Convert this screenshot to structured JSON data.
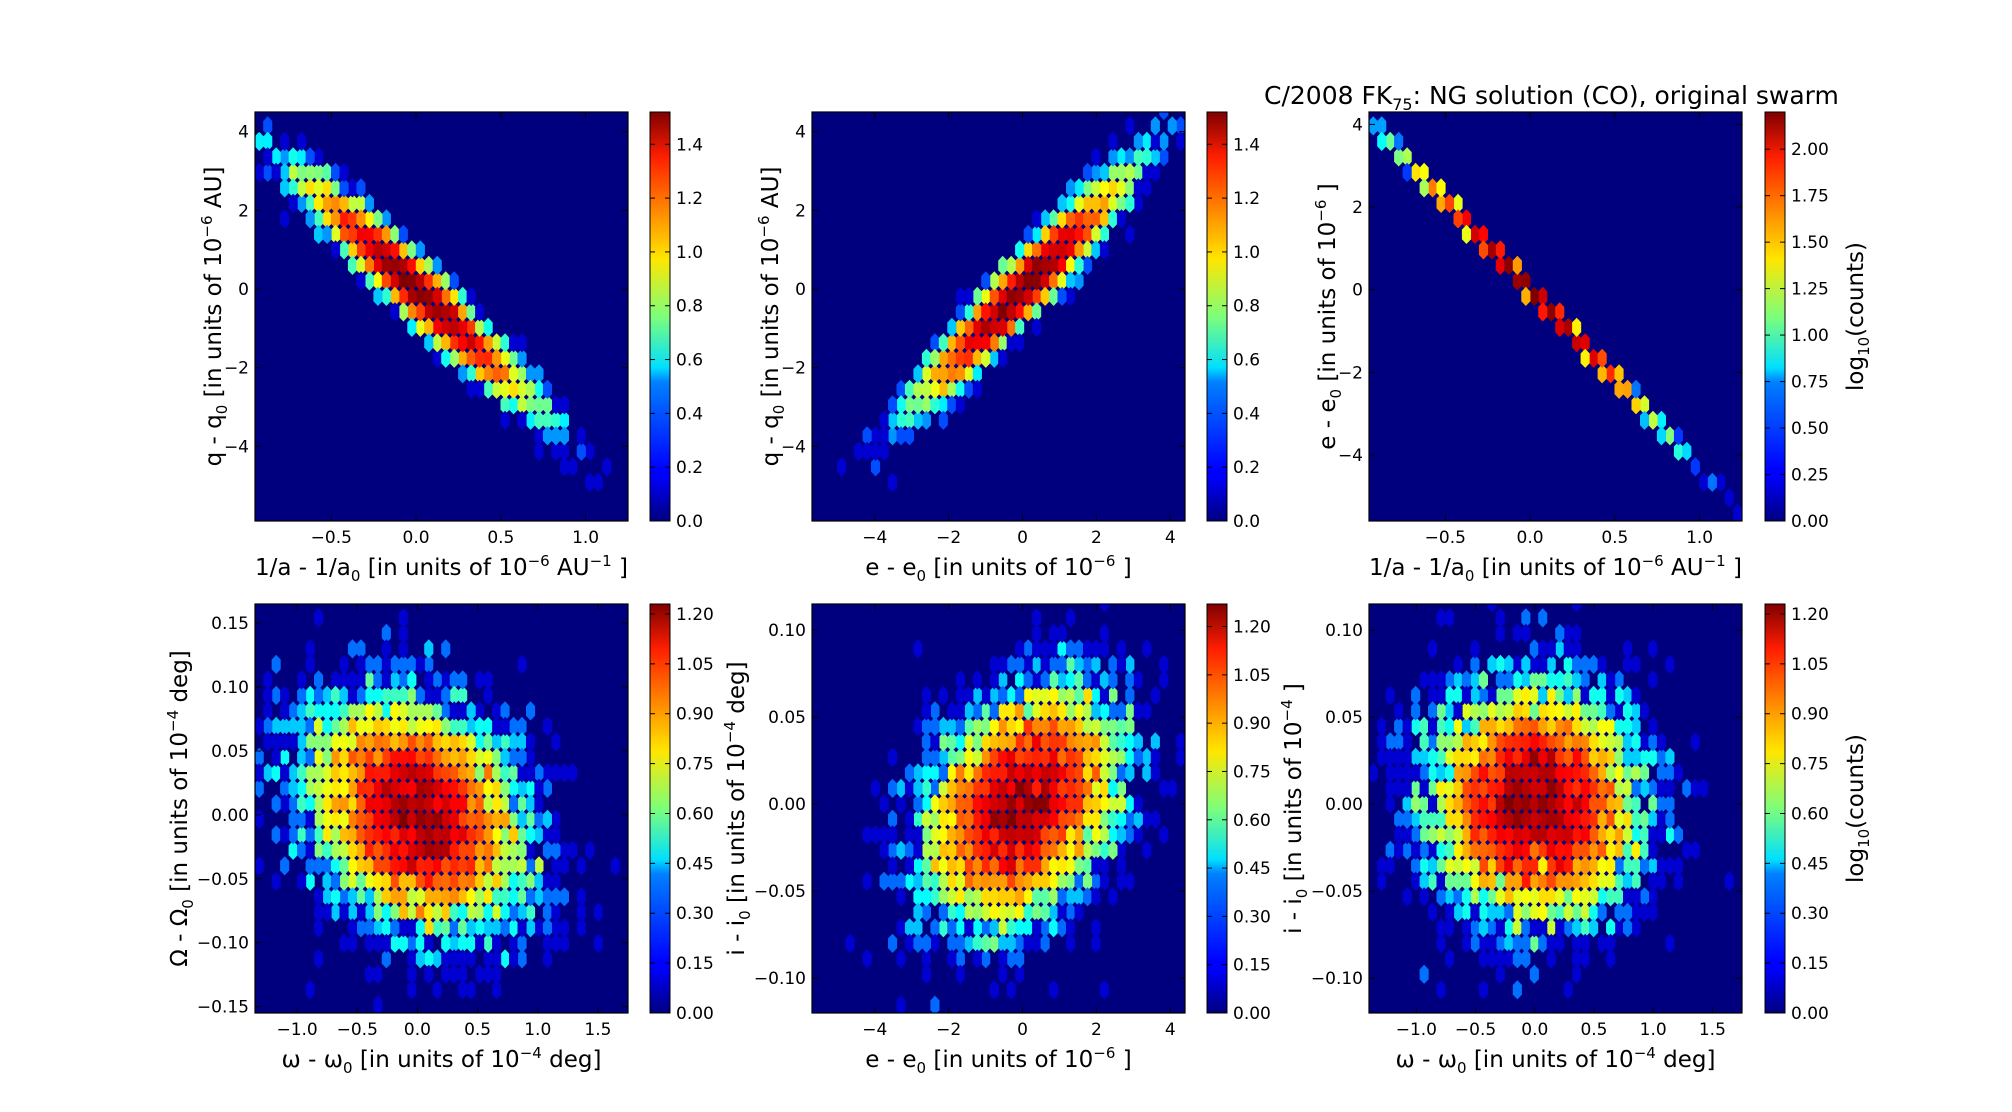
{
  "figure_title": "C/2008 FK75:  NG solution (CO), original swarm",
  "chart_data": [
    {
      "type": "heatmap",
      "id": "p1",
      "xlabel": "1/a - 1/a0 [in units of 10−6 AU−1 ]",
      "ylabel": "q - q0 [in units of 10−6 AU]",
      "xlim": [
        -0.95,
        1.25
      ],
      "ylim": [
        -5.9,
        4.5
      ],
      "xticks": [
        -0.5,
        0.0,
        0.5,
        1.0
      ],
      "xtick_labels": [
        "−0.5",
        "0.0",
        "0.5",
        "1.0"
      ],
      "yticks": [
        -4,
        -2,
        0,
        2,
        4
      ],
      "ytick_labels": [
        "−4",
        "−2",
        "0",
        "2",
        "4"
      ],
      "distribution": {
        "x_mean": 0.0,
        "x_sd": 0.3,
        "y_slope": -4.1,
        "y_scatter": 0.35
      },
      "colorbar": {
        "min": 0.0,
        "max": 1.52,
        "ticks": [
          "0.0",
          "0.2",
          "0.4",
          "0.6",
          "0.8",
          "1.0",
          "1.2",
          "1.4"
        ],
        "tick_values": [
          0.0,
          0.2,
          0.4,
          0.6,
          0.8,
          1.0,
          1.2,
          1.4
        ],
        "label": ""
      }
    },
    {
      "type": "heatmap",
      "id": "p2",
      "xlabel": "e - e0 [in units of 10−6 ]",
      "ylabel": "q - q0 [in units of 10−6 AU]",
      "xlim": [
        -5.7,
        4.4
      ],
      "ylim": [
        -5.9,
        4.5
      ],
      "xticks": [
        -4,
        -2,
        0,
        2,
        4
      ],
      "xtick_labels": [
        "−4",
        "−2",
        "0",
        "2",
        "4"
      ],
      "yticks": [
        -4,
        -2,
        0,
        2,
        4
      ],
      "ytick_labels": [
        "−4",
        "−2",
        "0",
        "2",
        "4"
      ],
      "distribution": {
        "x_mean": 0.0,
        "x_sd": 1.25,
        "y_slope": 0.98,
        "y_scatter": 0.38
      },
      "colorbar": {
        "min": 0.0,
        "max": 1.52,
        "ticks": [
          "0.0",
          "0.2",
          "0.4",
          "0.6",
          "0.8",
          "1.0",
          "1.2",
          "1.4"
        ],
        "tick_values": [
          0.0,
          0.2,
          0.4,
          0.6,
          0.8,
          1.0,
          1.2,
          1.4
        ],
        "label": ""
      }
    },
    {
      "type": "heatmap",
      "id": "p3",
      "xlabel": "1/a - 1/a0 [in units of 10−6 AU−1 ]",
      "ylabel": "e - e0 [in units of 10−6 ]",
      "xlim": [
        -0.95,
        1.25
      ],
      "ylim": [
        -5.6,
        4.3
      ],
      "xticks": [
        -0.5,
        0.0,
        0.5,
        1.0
      ],
      "xtick_labels": [
        "−0.5",
        "0.0",
        "0.5",
        "1.0"
      ],
      "yticks": [
        -4,
        -2,
        0,
        2,
        4
      ],
      "ytick_labels": [
        "−4",
        "−2",
        "0",
        "2",
        "4"
      ],
      "distribution": {
        "x_mean": 0.0,
        "x_sd": 0.3,
        "y_slope": -4.3,
        "y_scatter": 0.0,
        "line": true
      },
      "colorbar": {
        "min": 0.0,
        "max": 2.2,
        "ticks": [
          "0.00",
          "0.25",
          "0.50",
          "0.75",
          "1.00",
          "1.25",
          "1.50",
          "1.75",
          "2.00"
        ],
        "tick_values": [
          0.0,
          0.25,
          0.5,
          0.75,
          1.0,
          1.25,
          1.5,
          1.75,
          2.0
        ],
        "label": "log10(counts)"
      }
    },
    {
      "type": "heatmap",
      "id": "p4",
      "xlabel": "ω - ω0 [in units of 10−4 deg]",
      "ylabel": "Ω - Ω0 [in units of 10−4 deg]",
      "xlim": [
        -1.35,
        1.75
      ],
      "ylim": [
        -0.155,
        0.165
      ],
      "xticks": [
        -1.0,
        -0.5,
        0.0,
        0.5,
        1.0,
        1.5
      ],
      "xtick_labels": [
        "−1.0",
        "−0.5",
        "0.0",
        "0.5",
        "1.0",
        "1.5"
      ],
      "yticks": [
        -0.15,
        -0.1,
        -0.05,
        0.0,
        0.05,
        0.1,
        0.15
      ],
      "ytick_labels": [
        "−0.15",
        "−0.10",
        "−0.05",
        "0.00",
        "0.05",
        "0.10",
        "0.15"
      ],
      "distribution": {
        "x_mean": 0.0,
        "x_sd": 0.42,
        "y_slope": -0.025,
        "y_scatter": 0.042
      },
      "colorbar": {
        "min": 0.0,
        "max": 1.23,
        "ticks": [
          "0.00",
          "0.15",
          "0.30",
          "0.45",
          "0.60",
          "0.75",
          "0.90",
          "1.05",
          "1.20"
        ],
        "tick_values": [
          0.0,
          0.15,
          0.3,
          0.45,
          0.6,
          0.75,
          0.9,
          1.05,
          1.2
        ],
        "label": ""
      }
    },
    {
      "type": "heatmap",
      "id": "p5",
      "xlabel": "e - e0 [in units of 10−6 ]",
      "ylabel": "i - i0 [in units of 10−4 deg]",
      "xlim": [
        -5.7,
        4.4
      ],
      "ylim": [
        -0.12,
        0.115
      ],
      "xticks": [
        -4,
        -2,
        0,
        2,
        4
      ],
      "xtick_labels": [
        "−4",
        "−2",
        "0",
        "2",
        "4"
      ],
      "yticks": [
        -0.1,
        -0.05,
        0.0,
        0.05,
        0.1
      ],
      "ytick_labels": [
        "−0.10",
        "−0.05",
        "0.00",
        "0.05",
        "0.10"
      ],
      "distribution": {
        "x_mean": 0.0,
        "x_sd": 1.25,
        "y_slope": 0.0085,
        "y_scatter": 0.03
      },
      "colorbar": {
        "min": 0.0,
        "max": 1.27,
        "ticks": [
          "0.00",
          "0.15",
          "0.30",
          "0.45",
          "0.60",
          "0.75",
          "0.90",
          "1.05",
          "1.20"
        ],
        "tick_values": [
          0.0,
          0.15,
          0.3,
          0.45,
          0.6,
          0.75,
          0.9,
          1.05,
          1.2
        ],
        "label": ""
      }
    },
    {
      "type": "heatmap",
      "id": "p6",
      "xlabel": "ω - ω0 [in units of 10−4 deg]",
      "ylabel": "i - i0 [in units of 10−4 ]",
      "xlim": [
        -1.4,
        1.75
      ],
      "ylim": [
        -0.12,
        0.115
      ],
      "xticks": [
        -1.0,
        -0.5,
        0.0,
        0.5,
        1.0,
        1.5
      ],
      "xtick_labels": [
        "−1.0",
        "−0.5",
        "0.0",
        "0.5",
        "1.0",
        "1.5"
      ],
      "yticks": [
        -0.1,
        -0.05,
        0.0,
        0.05,
        0.1
      ],
      "ytick_labels": [
        "−0.10",
        "−0.05",
        "0.00",
        "0.05",
        "0.10"
      ],
      "distribution": {
        "x_mean": 0.0,
        "x_sd": 0.42,
        "y_slope": -0.004,
        "y_scatter": 0.032
      },
      "colorbar": {
        "min": 0.0,
        "max": 1.23,
        "ticks": [
          "0.00",
          "0.15",
          "0.30",
          "0.45",
          "0.60",
          "0.75",
          "0.90",
          "1.05",
          "1.20"
        ],
        "tick_values": [
          0.0,
          0.15,
          0.3,
          0.45,
          0.6,
          0.75,
          0.9,
          1.05,
          1.2
        ],
        "label": "log10(counts)"
      }
    }
  ]
}
